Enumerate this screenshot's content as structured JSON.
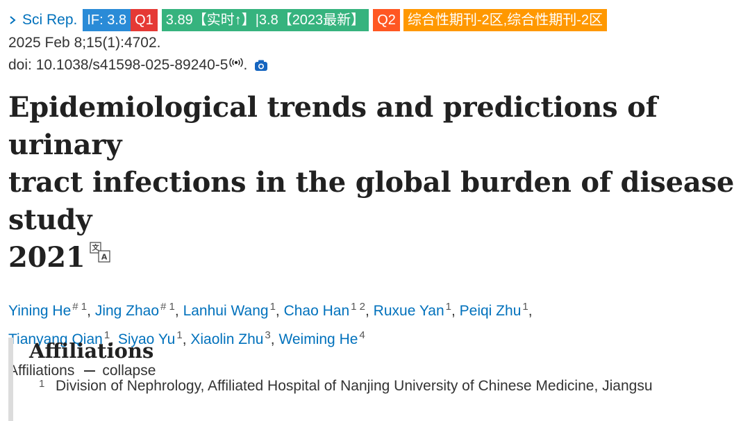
{
  "journal": {
    "name": "Sci Rep.",
    "badges": {
      "impact_factor": "IF: 3.8",
      "quartile_1": "Q1",
      "realtime": "3.89【实时↑】|3.8【2023最新】",
      "quartile_2": "Q2",
      "category": "综合性期刊-2区,综合性期刊-2区"
    },
    "colors": {
      "if": "#2a8bd7",
      "q1": "#e53935",
      "realtime": "#36b37e",
      "q2": "#ff5722",
      "category": "#ff9800",
      "link": "#0071bc"
    }
  },
  "citation": {
    "date_line": "2025 Feb 8;15(1):4702.",
    "doi": "doi: 10.1038/s41598-025-89240-5",
    "doi_suffix": "."
  },
  "article": {
    "title": "Epidemiological trends and predictions of urinary tract infections in the global burden of disease study 2021",
    "title_line1": "Epidemiological trends and predictions of urinary",
    "title_line2": "tract infections in the global burden of disease study",
    "title_line3": "2021"
  },
  "authors": [
    {
      "name": "Yining He",
      "sup": "# 1"
    },
    {
      "name": "Jing Zhao",
      "sup": "# 1"
    },
    {
      "name": "Lanhui Wang",
      "sup": "1"
    },
    {
      "name": "Chao Han",
      "sup": "1 2"
    },
    {
      "name": "Ruxue Yan",
      "sup": "1"
    },
    {
      "name": "Peiqi Zhu",
      "sup": "1"
    },
    {
      "name": "Tianyang Qian",
      "sup": "1"
    },
    {
      "name": "Siyao Yu",
      "sup": "1"
    },
    {
      "name": "Xiaolin Zhu",
      "sup": "3"
    },
    {
      "name": "Weiming He",
      "sup": "4"
    }
  ],
  "affiliations": {
    "toggle_label": "Affiliations",
    "collapse_label": "collapse",
    "heading": "Affiliations",
    "items": [
      {
        "num": "1",
        "text": "Division of Nephrology, Affiliated Hospital of Nanjing University of Chinese Medicine, Jiangsu"
      }
    ]
  },
  "icons": {
    "journal_chevron": "chevron-right-icon",
    "doi_signal": "signal-icon",
    "camera": "camera-icon",
    "translate": "translate-icon"
  }
}
